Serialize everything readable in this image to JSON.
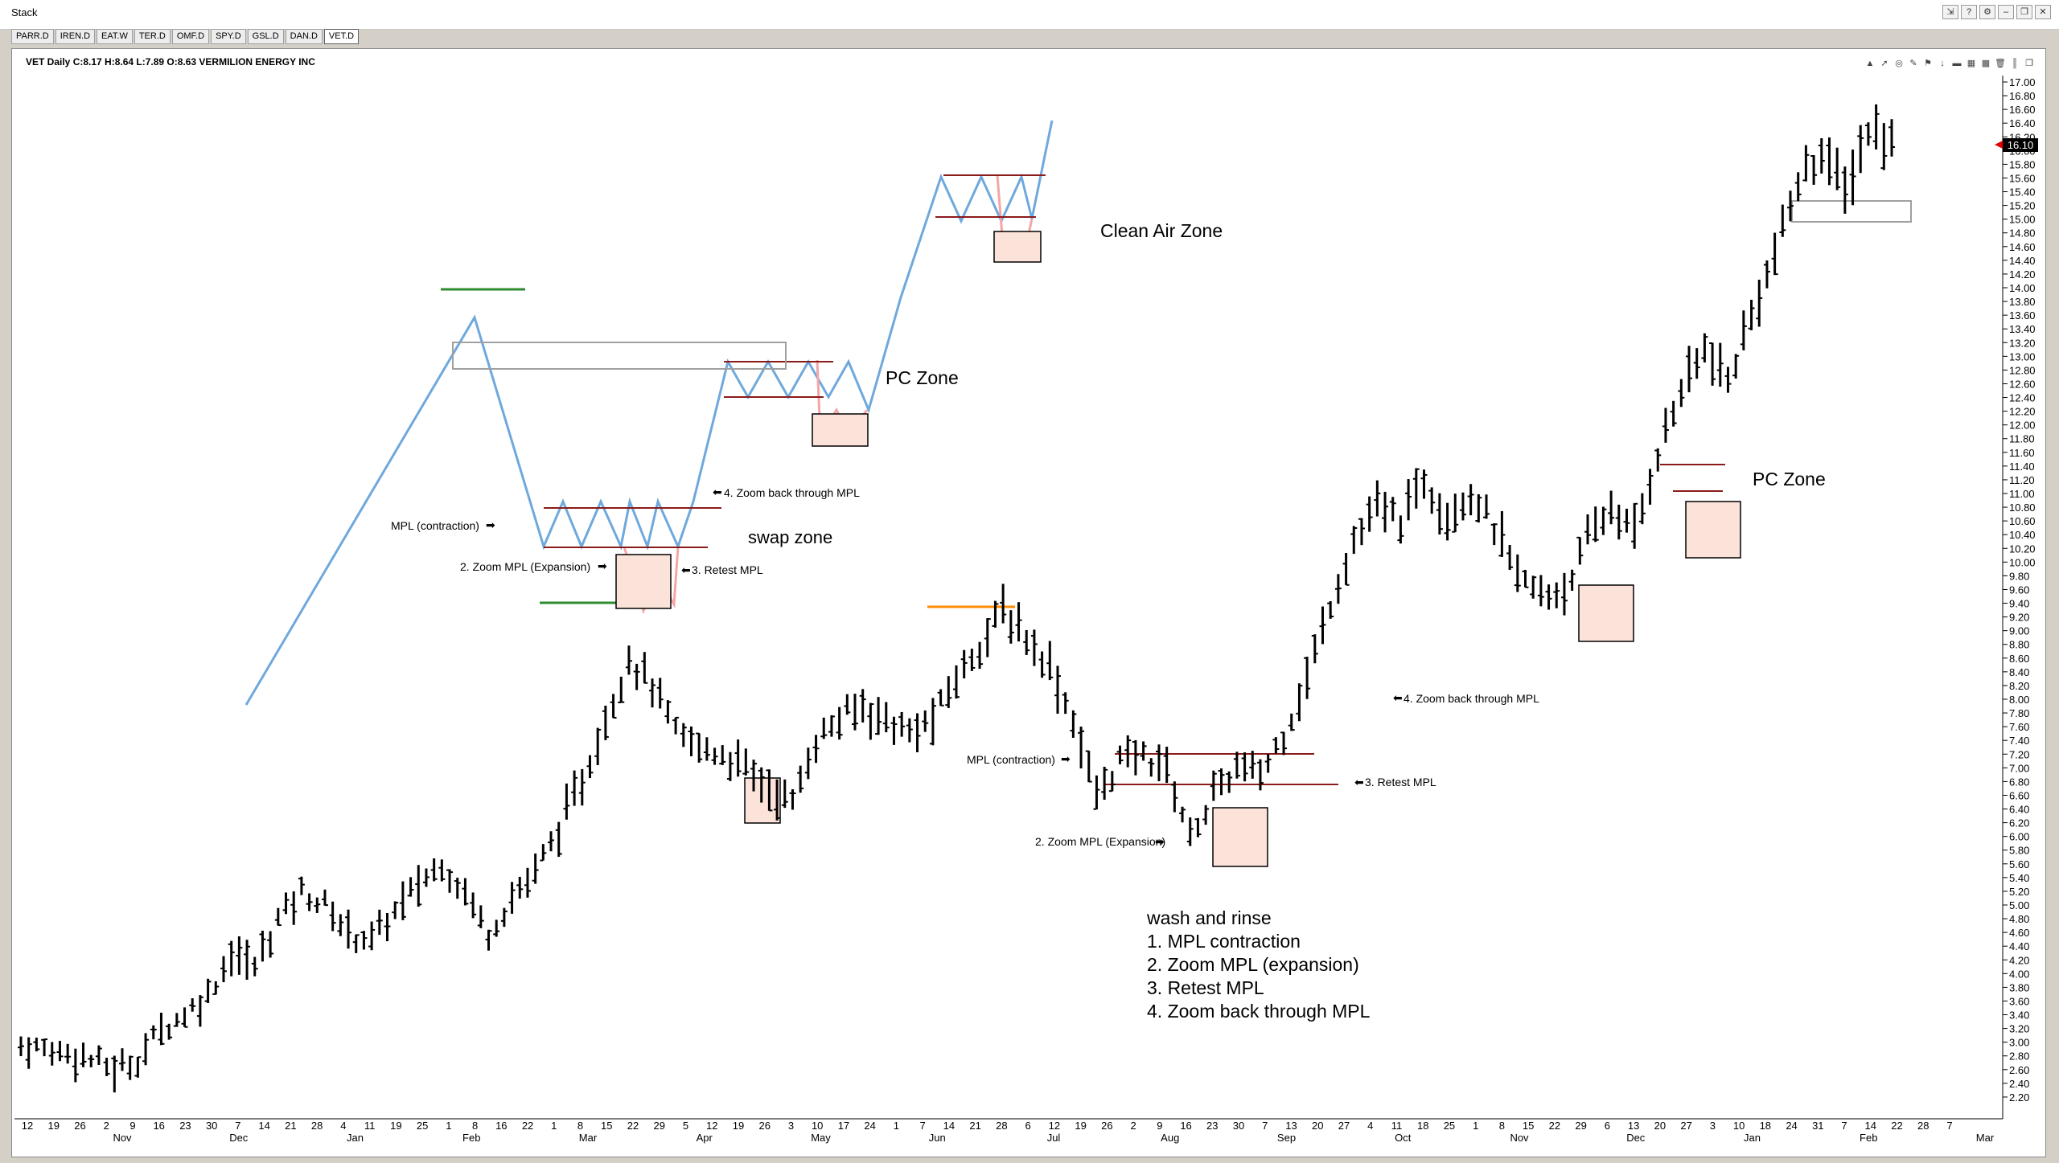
{
  "app": {
    "title": "Stack",
    "window_buttons": [
      "arrow-menu-icon",
      "help-icon",
      "settings-icon",
      "minimize-icon",
      "restore-icon",
      "close-icon"
    ]
  },
  "tabs": [
    "PARR.D",
    "IREN.D",
    "EAT.W",
    "TER.D",
    "OMF.D",
    "SPY.D",
    "GSL.D",
    "DAN.D",
    "VET.D"
  ],
  "active_tab": "VET.D",
  "chart_header": "VET Daily C:8.17 H:8.64 L:7.89 O:8.63 VERMILION ENERGY INC",
  "toolbar_icons": [
    "chart-icon",
    "arrow-up-icon",
    "target-icon",
    "pencil-icon",
    "flag-icon",
    "arrow-down-icon",
    "highlight-icon",
    "calendar-icon",
    "grid-icon",
    "trash-icon",
    "ruler-icon",
    "copy-icon"
  ],
  "colors": {
    "bars": "#000000",
    "pattern_line": "#6fa8dc",
    "pattern_drop": "#f4a6a6",
    "mpl_line": "#8b1a1a",
    "box_fill": "#fbe3d9",
    "green_level": "#2e8b2e",
    "orange_level": "#ff8c00",
    "price_marker": "#e00000"
  },
  "chart_data": {
    "type": "ohlc",
    "y_range": [
      2.0,
      17.0
    ],
    "y_ticks": [
      "17.00",
      "16.80",
      "16.60",
      "16.40",
      "16.20",
      "16.00",
      "15.80",
      "15.60",
      "15.40",
      "15.20",
      "15.00",
      "14.80",
      "14.60",
      "14.40",
      "14.20",
      "14.00",
      "13.80",
      "13.60",
      "13.40",
      "13.20",
      "13.00",
      "12.80",
      "12.60",
      "12.40",
      "12.20",
      "12.00",
      "11.80",
      "11.60",
      "11.40",
      "11.20",
      "11.00",
      "10.80",
      "10.60",
      "10.40",
      "10.20",
      "10.00",
      "9.80",
      "9.60",
      "9.40",
      "9.20",
      "9.00",
      "8.80",
      "8.60",
      "8.40",
      "8.20",
      "8.00",
      "7.80",
      "7.60",
      "7.40",
      "7.20",
      "7.00",
      "6.80",
      "6.60",
      "6.40",
      "6.20",
      "6.00",
      "5.80",
      "5.60",
      "5.40",
      "5.20",
      "5.00",
      "4.80",
      "4.60",
      "4.40",
      "4.20",
      "4.00",
      "3.80",
      "3.60",
      "3.40",
      "3.20",
      "3.00",
      "2.80",
      "2.60",
      "2.40",
      "2.20"
    ],
    "last_price": "16.10",
    "x_day_labels": [
      "12",
      "19",
      "26",
      "2",
      "9",
      "16",
      "23",
      "30",
      "7",
      "14",
      "21",
      "28",
      "4",
      "11",
      "19",
      "25",
      "1",
      "8",
      "16",
      "22",
      "1",
      "8",
      "15",
      "22",
      "29",
      "5",
      "12",
      "19",
      "26",
      "3",
      "10",
      "17",
      "24",
      "1",
      "7",
      "14",
      "21",
      "28",
      "6",
      "12",
      "19",
      "26",
      "2",
      "9",
      "16",
      "23",
      "30",
      "7",
      "13",
      "20",
      "27",
      "4",
      "11",
      "18",
      "25",
      "1",
      "8",
      "15",
      "22",
      "29",
      "6",
      "13",
      "20",
      "27",
      "3",
      "10",
      "18",
      "24",
      "31",
      "7",
      "14",
      "22",
      "28",
      "7"
    ],
    "x_month_labels": [
      "Nov",
      "Dec",
      "Jan",
      "Feb",
      "Mar",
      "Apr",
      "May",
      "Jun",
      "Jul",
      "Aug",
      "Sep",
      "Oct",
      "Nov",
      "Dec",
      "Jan",
      "Feb",
      "Mar"
    ],
    "series": [
      {
        "key": "s1",
        "points": [
          [
            0,
            2.95
          ],
          [
            3,
            2.9
          ],
          [
            6,
            2.85
          ],
          [
            9,
            2.75
          ],
          [
            12,
            2.6
          ],
          [
            15,
            2.75
          ],
          [
            18,
            3.2
          ],
          [
            21,
            3.4
          ],
          [
            24,
            3.7
          ],
          [
            27,
            4.3
          ],
          [
            30,
            4.1
          ],
          [
            33,
            4.8
          ],
          [
            36,
            5.2
          ],
          [
            39,
            5.0
          ],
          [
            42,
            4.6
          ],
          [
            45,
            4.5
          ],
          [
            48,
            4.9
          ],
          [
            51,
            5.3
          ],
          [
            54,
            5.6
          ],
          [
            57,
            5.2
          ],
          [
            60,
            4.6
          ],
          [
            63,
            5.1
          ],
          [
            66,
            5.5
          ],
          [
            69,
            6.1
          ],
          [
            72,
            6.8
          ],
          [
            75,
            7.7
          ],
          [
            78,
            8.6
          ],
          [
            81,
            8.2
          ],
          [
            84,
            7.5
          ],
          [
            87,
            7.3
          ],
          [
            90,
            7.2
          ],
          [
            93,
            7.0
          ],
          [
            96,
            6.7
          ],
          [
            99,
            6.5
          ],
          [
            102,
            7.4
          ],
          [
            105,
            7.7
          ],
          [
            108,
            7.9
          ],
          [
            111,
            7.7
          ],
          [
            114,
            7.5
          ],
          [
            117,
            7.7
          ],
          [
            120,
            8.3
          ],
          [
            123,
            8.8
          ],
          [
            126,
            9.3
          ],
          [
            129,
            8.9
          ],
          [
            132,
            8.5
          ],
          [
            135,
            7.7
          ],
          [
            138,
            6.6
          ],
          [
            141,
            7.1
          ],
          [
            144,
            7.2
          ],
          [
            147,
            7.0
          ],
          [
            150,
            6.0
          ],
          [
            153,
            6.6
          ],
          [
            156,
            7.0
          ],
          [
            159,
            6.9
          ],
          [
            162,
            7.5
          ],
          [
            165,
            8.3
          ],
          [
            168,
            9.4
          ],
          [
            171,
            10.3
          ],
          [
            174,
            10.8
          ],
          [
            177,
            10.6
          ],
          [
            180,
            11.2
          ],
          [
            183,
            10.7
          ],
          [
            186,
            11.0
          ],
          [
            189,
            10.5
          ],
          [
            192,
            9.8
          ],
          [
            195,
            9.5
          ],
          [
            198,
            9.6
          ],
          [
            201,
            10.3
          ],
          [
            204,
            10.8
          ],
          [
            207,
            10.4
          ],
          [
            210,
            11.6
          ],
          [
            213,
            12.5
          ],
          [
            216,
            13.1
          ],
          [
            219,
            12.6
          ],
          [
            222,
            13.6
          ],
          [
            225,
            14.5
          ],
          [
            228,
            15.5
          ],
          [
            231,
            16.0
          ],
          [
            234,
            15.4
          ],
          [
            237,
            16.3
          ],
          [
            240,
            16.1
          ]
        ]
      }
    ],
    "annotations": {
      "clean_air_zone": "Clean Air Zone",
      "pc_zone_upper": "PC Zone",
      "pc_zone_lower": "PC Zone",
      "swap_zone": "swap zone",
      "step4_upper": "4. Zoom back through MPL",
      "mpl_contraction_upper": "MPL (contraction)",
      "step2_upper": "2. Zoom MPL (Expansion)",
      "step3_upper": "3. Retest MPL",
      "mpl_contraction_lower": "MPL (contraction)",
      "step2_lower": "2. Zoom MPL (Expansion)",
      "step3_lower": "3. Retest MPL",
      "step4_lower": "4. Zoom back through MPL",
      "wash_title": "wash and rinse",
      "wash_1": "1. MPL contraction",
      "wash_2": "2. Zoom MPL (expansion)",
      "wash_3": "3. Retest MPL",
      "wash_4": "4. Zoom back through MPL"
    },
    "grid": false
  }
}
